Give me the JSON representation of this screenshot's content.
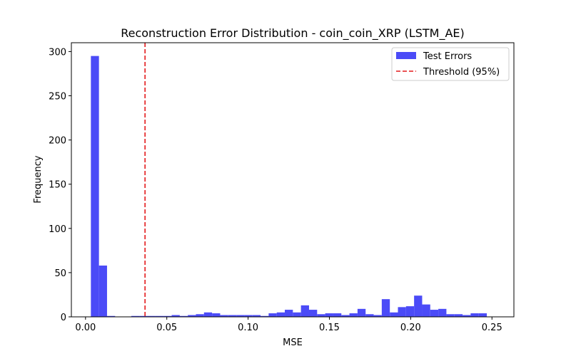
{
  "chart_data": {
    "type": "bar",
    "title": "Reconstruction Error Distribution - coin_coin_XRP (LSTM_AE)",
    "xlabel": "MSE",
    "ylabel": "Frequency",
    "xlim": [
      -0.0087,
      0.2635
    ],
    "ylim": [
      0,
      310
    ],
    "xticks": [
      0.0,
      0.05,
      0.1,
      0.15,
      0.2,
      0.25
    ],
    "xtick_labels": [
      "0.00",
      "0.05",
      "0.10",
      "0.15",
      "0.20",
      "0.25"
    ],
    "yticks": [
      0,
      50,
      100,
      150,
      200,
      250,
      300
    ],
    "ytick_labels": [
      "0",
      "50",
      "100",
      "150",
      "200",
      "250",
      "300"
    ],
    "bin_start": 0.0033,
    "bin_width": 0.00497,
    "values": [
      295,
      58,
      1,
      0,
      0,
      1,
      1,
      1,
      1,
      1,
      2,
      1,
      2,
      3,
      5,
      4,
      2,
      2,
      2,
      2,
      2,
      1,
      4,
      5,
      8,
      5,
      13,
      8,
      3,
      4,
      4,
      2,
      4,
      9,
      3,
      2,
      20,
      5,
      11,
      12,
      24,
      14,
      8,
      9,
      3,
      3,
      2,
      4,
      4
    ],
    "bar_color": "#4b4bf7",
    "threshold": 0.0366,
    "threshold_color": "#e31a1c",
    "legend": {
      "position": "top-right",
      "entries": [
        {
          "label": "Test Errors",
          "kind": "patch",
          "color": "#4b4bf7"
        },
        {
          "label": "Threshold (95%)",
          "kind": "dashed-line",
          "color": "#e31a1c"
        }
      ]
    },
    "grid": false
  }
}
